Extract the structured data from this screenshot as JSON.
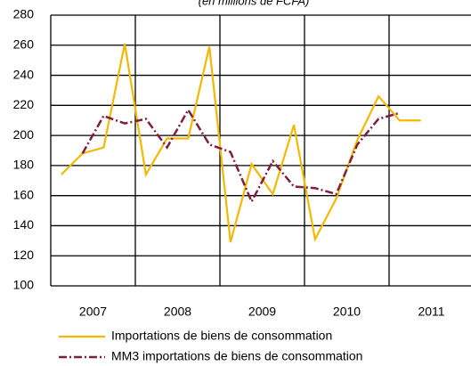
{
  "chart_data": {
    "type": "line",
    "subtitle": "(en millions de FCFA)",
    "categories": [
      null,
      "2007",
      null,
      null,
      null,
      "2008",
      null,
      null,
      null,
      "2009",
      null,
      null,
      null,
      "2010",
      null,
      null,
      null,
      "2011",
      null,
      null
    ],
    "series": [
      {
        "name": "Importations de biens de consommation",
        "color": "#f5b800",
        "style": "solid",
        "values": [
          174,
          188,
          192,
          261,
          174,
          198,
          198,
          259,
          129,
          181,
          161,
          207,
          131,
          158,
          197,
          226,
          210,
          210,
          null,
          null
        ]
      },
      {
        "name": "MM3 importations de biens de consommation",
        "color": "#7f1f3f",
        "style": "dashdot",
        "values": [
          null,
          188,
          213,
          208,
          211,
          192,
          217,
          194,
          189,
          156,
          183,
          166,
          165,
          161,
          194,
          211,
          215,
          null,
          null,
          null
        ]
      }
    ],
    "ylim": [
      100,
      280
    ],
    "yticks": [
      100,
      120,
      140,
      160,
      180,
      200,
      220,
      240,
      260,
      280
    ],
    "grid": true
  }
}
